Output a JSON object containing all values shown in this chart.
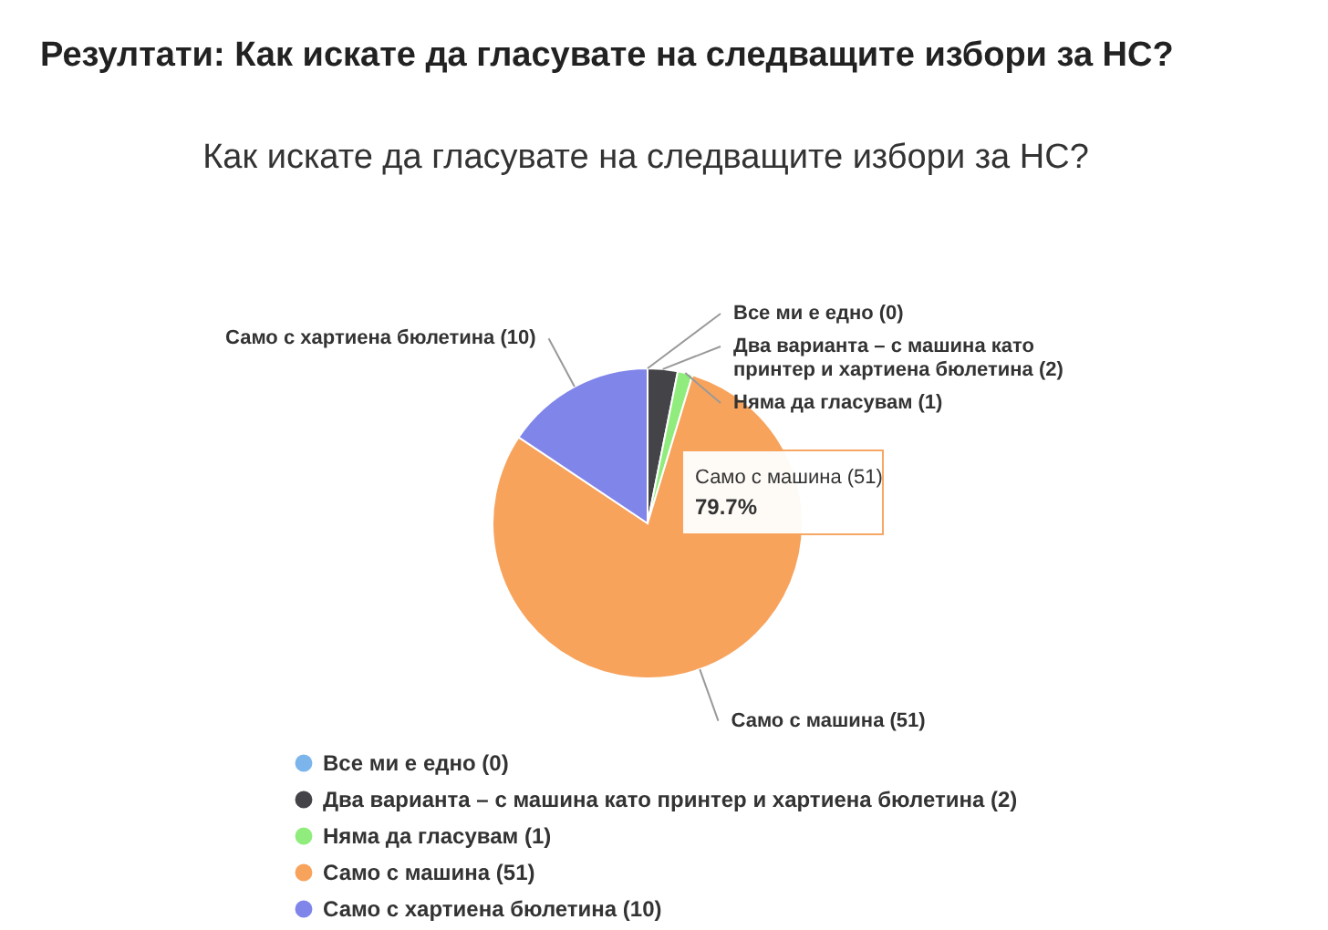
{
  "chart_data": {
    "type": "pie",
    "title": "Резултати: Как искате да гласувате на следващите избори за НС?",
    "subtitle": "Как искате да гласувате на следващите избори за НС?",
    "categories": [
      "Все ми е едно",
      "Два варианта – с машина като принтер и хартиена бюлетина",
      "Няма да гласувам",
      "Само с машина",
      "Само с хартиена бюлетина"
    ],
    "values": [
      0,
      2,
      1,
      51,
      10
    ],
    "colors": [
      "#7cb5ec",
      "#434348",
      "#90ed7d",
      "#f7a35c",
      "#8085e9"
    ],
    "value_labels": [
      "(0)",
      "(2)",
      "(1)",
      "(51)",
      "(10)"
    ],
    "legend": "bottom left",
    "annotations": [
      "Само с машина (51)",
      "79.7%"
    ]
  }
}
